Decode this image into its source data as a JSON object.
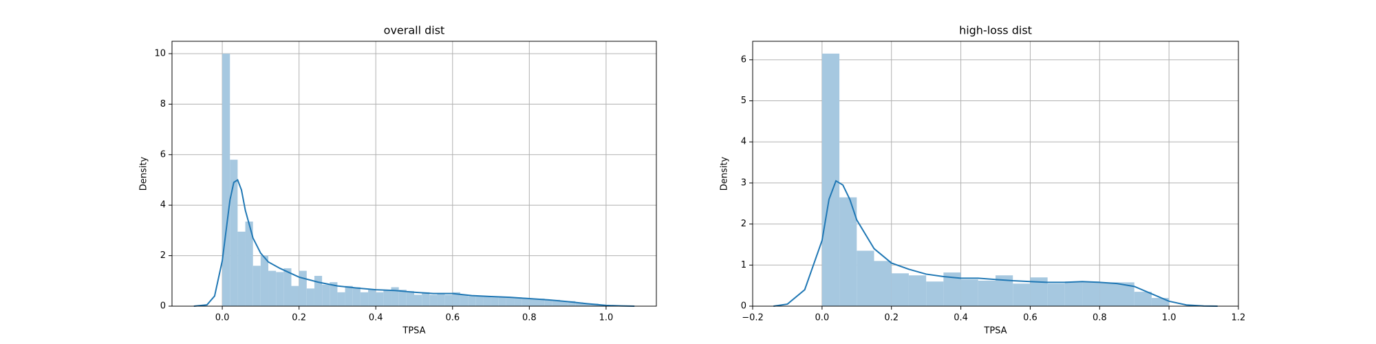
{
  "chart_data": [
    {
      "type": "histogram",
      "title": "overall dist",
      "x_label": "TPSA",
      "y_label": "Density",
      "bins": [
        0.0,
        0.02,
        0.04,
        0.06,
        0.08,
        0.1,
        0.12,
        0.14,
        0.16,
        0.18,
        0.2,
        0.22,
        0.24,
        0.26,
        0.28,
        0.3,
        0.32,
        0.34,
        0.36,
        0.38,
        0.4,
        0.42,
        0.44,
        0.46,
        0.48,
        0.5,
        0.52,
        0.54,
        0.56,
        0.58,
        0.6,
        0.62,
        0.64,
        0.66,
        0.68,
        0.7,
        0.72,
        0.74,
        0.76,
        0.78,
        0.8,
        0.82,
        0.84,
        0.86,
        0.88,
        0.9,
        0.92,
        0.94,
        0.96,
        0.98,
        1.0
      ],
      "values": [
        10.0,
        5.8,
        2.95,
        3.35,
        1.6,
        2.0,
        1.4,
        1.35,
        1.5,
        0.8,
        1.4,
        0.7,
        1.2,
        0.85,
        0.95,
        0.55,
        0.8,
        0.75,
        0.55,
        0.65,
        0.55,
        0.65,
        0.75,
        0.65,
        0.6,
        0.45,
        0.55,
        0.45,
        0.5,
        0.45,
        0.55,
        0.45,
        0.4,
        0.4,
        0.4,
        0.35,
        0.35,
        0.35,
        0.35,
        0.3,
        0.3,
        0.3,
        0.25,
        0.25,
        0.2,
        0.2,
        0.15,
        0.1,
        0.1,
        0.05
      ],
      "color": "#a6c8e0",
      "kde_x": [
        -0.074,
        -0.04,
        -0.02,
        0,
        0.01,
        0.02,
        0.03,
        0.04,
        0.05,
        0.06,
        0.08,
        0.1,
        0.12,
        0.15,
        0.2,
        0.25,
        0.3,
        0.35,
        0.4,
        0.45,
        0.5,
        0.55,
        0.6,
        0.65,
        0.7,
        0.75,
        0.8,
        0.85,
        0.9,
        0.95,
        1.0,
        1.04,
        1.074
      ],
      "kde_y": [
        0,
        0.05,
        0.4,
        1.8,
        3.0,
        4.2,
        4.9,
        5.0,
        4.6,
        3.8,
        2.7,
        2.1,
        1.75,
        1.5,
        1.15,
        0.95,
        0.8,
        0.72,
        0.65,
        0.62,
        0.55,
        0.5,
        0.5,
        0.42,
        0.38,
        0.35,
        0.3,
        0.25,
        0.18,
        0.1,
        0.03,
        0.01,
        0
      ],
      "kde_color": "#1f77b4",
      "xlim": [
        -0.131,
        1.131
      ],
      "ylim": [
        0,
        10.49
      ],
      "xticks": [
        {
          "value": 0.0,
          "label": "0.0"
        },
        {
          "value": 0.2,
          "label": "0.2"
        },
        {
          "value": 0.4,
          "label": "0.4"
        },
        {
          "value": 0.6,
          "label": "0.6"
        },
        {
          "value": 0.8,
          "label": "0.8"
        },
        {
          "value": 1.0,
          "label": "1.0"
        }
      ],
      "yticks": [
        0,
        2,
        4,
        6,
        8,
        10
      ],
      "grid": true
    },
    {
      "type": "histogram",
      "title": "high-loss dist",
      "x_label": "TPSA",
      "y_label": "Density",
      "bins": [
        0.0,
        0.05,
        0.1,
        0.15,
        0.2,
        0.25,
        0.3,
        0.35,
        0.4,
        0.45,
        0.5,
        0.55,
        0.6,
        0.65,
        0.7,
        0.75,
        0.8,
        0.85,
        0.9,
        0.95,
        1.0
      ],
      "values": [
        6.15,
        2.65,
        1.35,
        1.1,
        0.8,
        0.75,
        0.6,
        0.82,
        0.65,
        0.62,
        0.75,
        0.55,
        0.7,
        0.55,
        0.6,
        0.6,
        0.58,
        0.58,
        0.35,
        0.2
      ],
      "color": "#a6c8e0",
      "kde_x": [
        -0.14,
        -0.1,
        -0.05,
        0,
        0.02,
        0.04,
        0.06,
        0.08,
        0.1,
        0.15,
        0.2,
        0.25,
        0.3,
        0.35,
        0.4,
        0.45,
        0.5,
        0.55,
        0.6,
        0.65,
        0.7,
        0.75,
        0.8,
        0.85,
        0.9,
        0.95,
        1.0,
        1.05,
        1.1,
        1.14
      ],
      "kde_y": [
        0,
        0.05,
        0.4,
        1.6,
        2.6,
        3.05,
        2.95,
        2.6,
        2.1,
        1.4,
        1.05,
        0.9,
        0.78,
        0.72,
        0.68,
        0.68,
        0.65,
        0.62,
        0.6,
        0.58,
        0.58,
        0.6,
        0.58,
        0.55,
        0.48,
        0.3,
        0.12,
        0.03,
        0.005,
        0
      ],
      "kde_color": "#1f77b4",
      "xlim": [
        -0.2,
        1.2
      ],
      "ylim": [
        0,
        6.45
      ],
      "xticks": [
        {
          "value": -0.2,
          "label": "−0.2"
        },
        {
          "value": 0.0,
          "label": "0.0"
        },
        {
          "value": 0.2,
          "label": "0.2"
        },
        {
          "value": 0.4,
          "label": "0.4"
        },
        {
          "value": 0.6,
          "label": "0.6"
        },
        {
          "value": 0.8,
          "label": "0.8"
        },
        {
          "value": 1.0,
          "label": "1.0"
        },
        {
          "value": 1.2,
          "label": "1.2"
        }
      ],
      "yticks": [
        0,
        1,
        2,
        3,
        4,
        5,
        6
      ],
      "grid": true
    }
  ]
}
